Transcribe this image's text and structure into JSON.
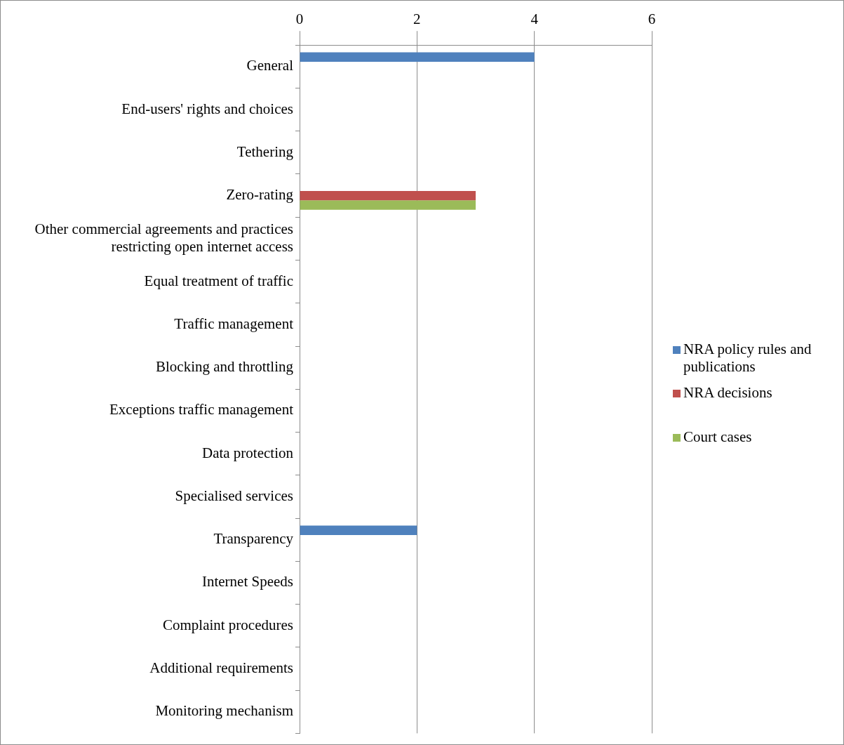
{
  "chart_data": {
    "type": "bar",
    "orientation": "horizontal",
    "categories": [
      "General",
      "End-users' rights and choices",
      "Tethering",
      "Zero-rating",
      "Other commercial agreements and practices restricting open internet access",
      "Equal treatment of traffic",
      "Traffic management",
      "Blocking and throttling",
      "Exceptions traffic management",
      "Data protection",
      "Specialised services",
      "Transparency",
      "Internet Speeds",
      "Complaint procedures",
      "Additional requirements",
      "Monitoring mechanism"
    ],
    "series": [
      {
        "name": "NRA policy rules and publications",
        "color": "#4f81bd",
        "values": [
          4,
          0,
          0,
          0,
          0,
          0,
          0,
          0,
          0,
          0,
          0,
          2,
          0,
          0,
          0,
          0
        ]
      },
      {
        "name": "NRA decisions",
        "color": "#c0504d",
        "values": [
          0,
          0,
          0,
          3,
          0,
          0,
          0,
          0,
          0,
          0,
          0,
          0,
          0,
          0,
          0,
          0
        ]
      },
      {
        "name": "Court cases",
        "color": "#9bbb59",
        "values": [
          0,
          0,
          0,
          3,
          0,
          0,
          0,
          0,
          0,
          0,
          0,
          0,
          0,
          0,
          0,
          0
        ]
      }
    ],
    "xlim": [
      0,
      6
    ],
    "xticks": [
      0,
      2,
      4,
      6
    ],
    "grid": "x",
    "legend": "right"
  }
}
